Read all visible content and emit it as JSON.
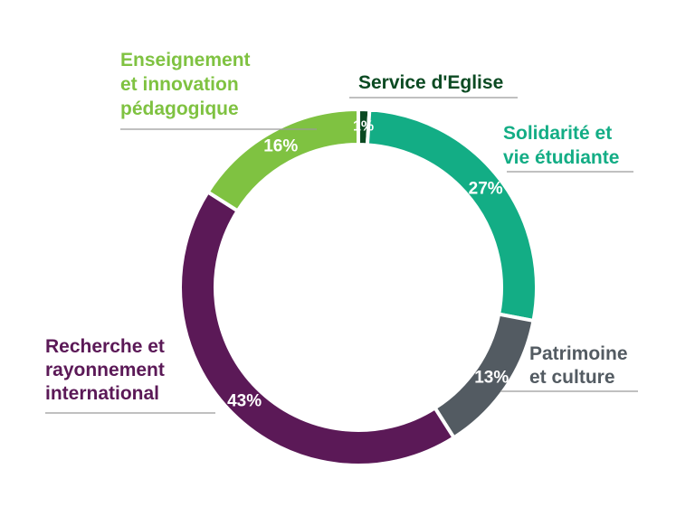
{
  "chart_data": {
    "type": "pie",
    "donut": true,
    "title": "",
    "categories": [
      "Service d'Eglise",
      "Solidarité et vie étudiante",
      "Patrimoine et culture",
      "Recherche et rayonnement international",
      "Enseignement et innovation pédagogique"
    ],
    "values": [
      1,
      27,
      13,
      43,
      16
    ],
    "value_labels": [
      "1%",
      "27%",
      "13%",
      "43%",
      "16%"
    ],
    "colors": [
      "#0b4a22",
      "#13ad85",
      "#535b62",
      "#5b1957",
      "#7fc241"
    ],
    "label_lines": [
      [
        "Service d'Eglise"
      ],
      [
        "Solidarité et",
        "vie étudiante"
      ],
      [
        "Patrimoine",
        "et culture"
      ],
      [
        "Recherche et",
        "rayonnement",
        "international"
      ],
      [
        "Enseignement",
        "et innovation",
        "pédagogique"
      ]
    ],
    "legend": "callout labels around ring"
  }
}
